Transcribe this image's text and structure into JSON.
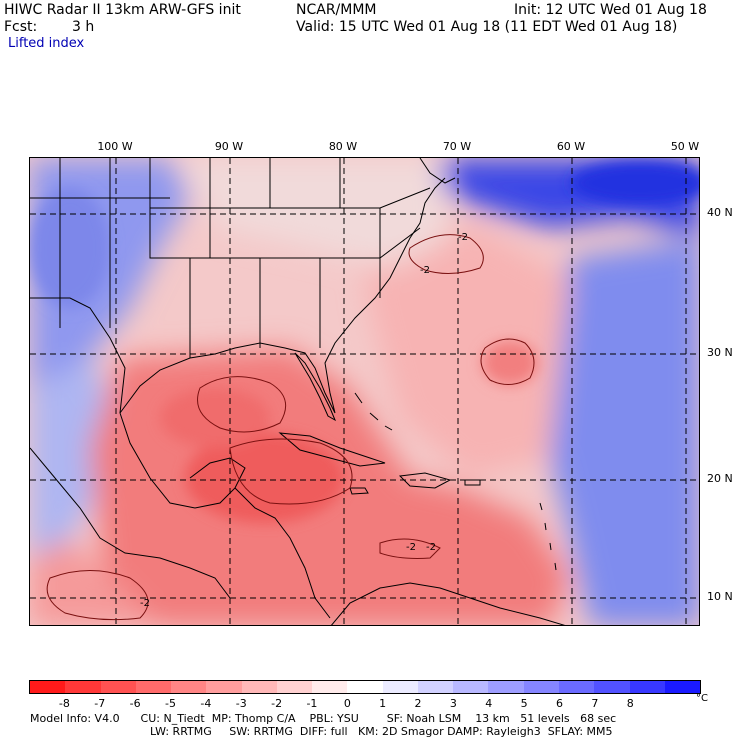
{
  "header": {
    "model_title": "HIWC Radar II 13km ARW-GFS init",
    "center": "NCAR/MMM",
    "init": "Init: 12 UTC Wed 01 Aug 18",
    "fcst_label": "Fcst:",
    "fcst_value": "3 h",
    "valid": "Valid: 15 UTC Wed 01 Aug 18 (11 EDT Wed 01 Aug 18)",
    "field": "Lifted index"
  },
  "axes": {
    "lon_labels": [
      "100 W",
      "90 W",
      "80 W",
      "70 W",
      "60 W",
      "50 W"
    ],
    "lat_labels": [
      "40 N",
      "30 N",
      "20 N",
      "10 N"
    ]
  },
  "contours": {
    "label": "-2"
  },
  "colorbar": {
    "ticks": [
      "-8",
      "-7",
      "-6",
      "-5",
      "-4",
      "-3",
      "-2",
      "-1",
      "0",
      "1",
      "2",
      "3",
      "4",
      "5",
      "6",
      "7",
      "8"
    ],
    "unit": "°C",
    "colors": [
      "#ff1a1a",
      "#ff3838",
      "#ff5252",
      "#ff6b6b",
      "#ff8585",
      "#ff9e9e",
      "#ffb8b8",
      "#ffd1d1",
      "#ffebeb",
      "#ffffff",
      "#ebebff",
      "#d1d1ff",
      "#b8b8ff",
      "#9e9eff",
      "#8585ff",
      "#6b6bff",
      "#5252ff",
      "#3838ff",
      "#1a1aff"
    ]
  },
  "footer": {
    "line1": "Model Info: V4.0      CU: N_Tiedt  MP: Thomp C/A    PBL: YSU        SF: Noah LSM    13 km   51 levels   68 sec",
    "line2": "LW: RRTMG     SW: RRTMG  DIFF: full   KM: 2D Smagor DAMP: Rayleigh3  SFLAY: MM5"
  }
}
